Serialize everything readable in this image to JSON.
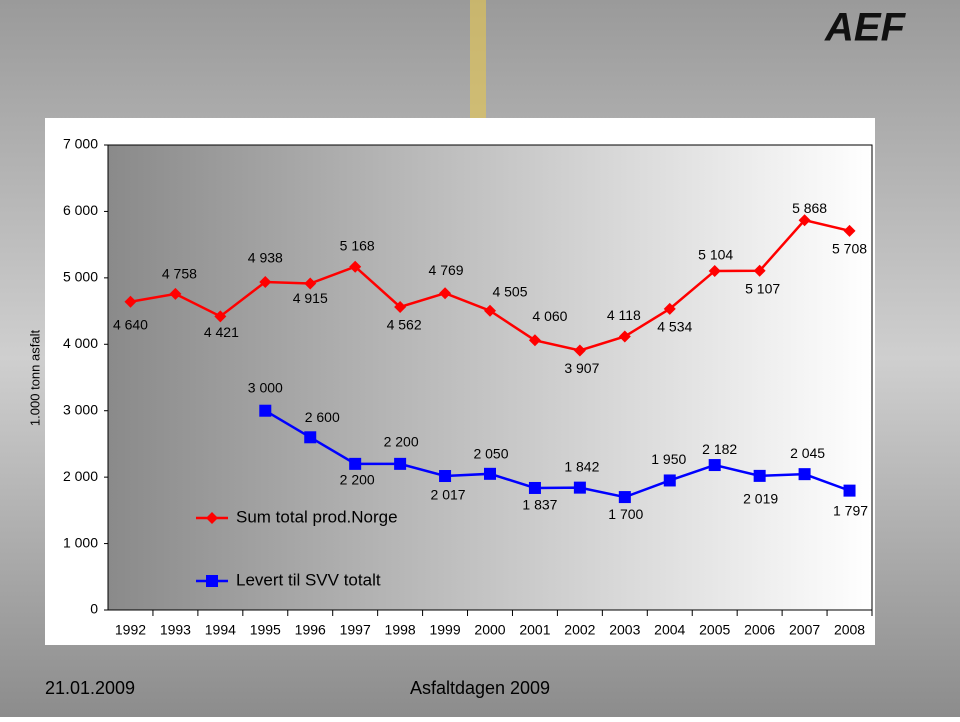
{
  "logo": "AEF",
  "footer": {
    "date": "21.01.2009",
    "event": "Asfaltdagen 2009"
  },
  "chart_data": {
    "type": "line",
    "y_label": "1.000 tonn asfalt",
    "categories": [
      "1992",
      "1993",
      "1994",
      "1995",
      "1996",
      "1997",
      "1998",
      "1999",
      "2000",
      "2001",
      "2002",
      "2003",
      "2004",
      "2005",
      "2006",
      "2007",
      "2008"
    ],
    "series": [
      {
        "name": "Sum total prod.Norge",
        "color": "#ff0000",
        "marker": "diamond",
        "values": [
          4640,
          4758,
          4421,
          4938,
          4915,
          5168,
          4562,
          4769,
          4505,
          4060,
          3907,
          4118,
          4534,
          5104,
          5107,
          5868,
          5708
        ],
        "value_labels": [
          "4 640",
          "4 758",
          "4 421",
          "4 938",
          "4 915",
          "5 168",
          "4 562",
          "4 769",
          "4 505",
          "4 060",
          "3 907",
          "4 118",
          "4 534",
          "5 104",
          "5 107",
          "5 868",
          "5 708"
        ]
      },
      {
        "name": "Levert til SVV totalt",
        "color": "#0000ff",
        "marker": "square",
        "values": [
          null,
          null,
          null,
          3000,
          2600,
          2200,
          2200,
          2017,
          2050,
          1837,
          1842,
          1700,
          1950,
          2182,
          2019,
          2045,
          1797
        ],
        "value_labels": [
          null,
          null,
          null,
          "3 000",
          "2 600",
          "2 200",
          "2 200",
          "2 017",
          "2 050",
          "1 837",
          "1 842",
          "1 700",
          "1 950",
          "2 182",
          "2 019",
          "2 045",
          "1 797"
        ]
      }
    ],
    "ylim": [
      0,
      7000
    ],
    "yticks": [
      0,
      {
        "value": 1000,
        "label": "1 000"
      },
      {
        "value": 2000,
        "label": "2 000"
      },
      {
        "value": 3000,
        "label": "3 000"
      },
      {
        "value": 4000,
        "label": "4 000"
      },
      {
        "value": 5000,
        "label": "5 000"
      },
      {
        "value": 6000,
        "label": "6 000"
      },
      {
        "value": 7000,
        "label": "7 000"
      }
    ],
    "grid": false
  }
}
